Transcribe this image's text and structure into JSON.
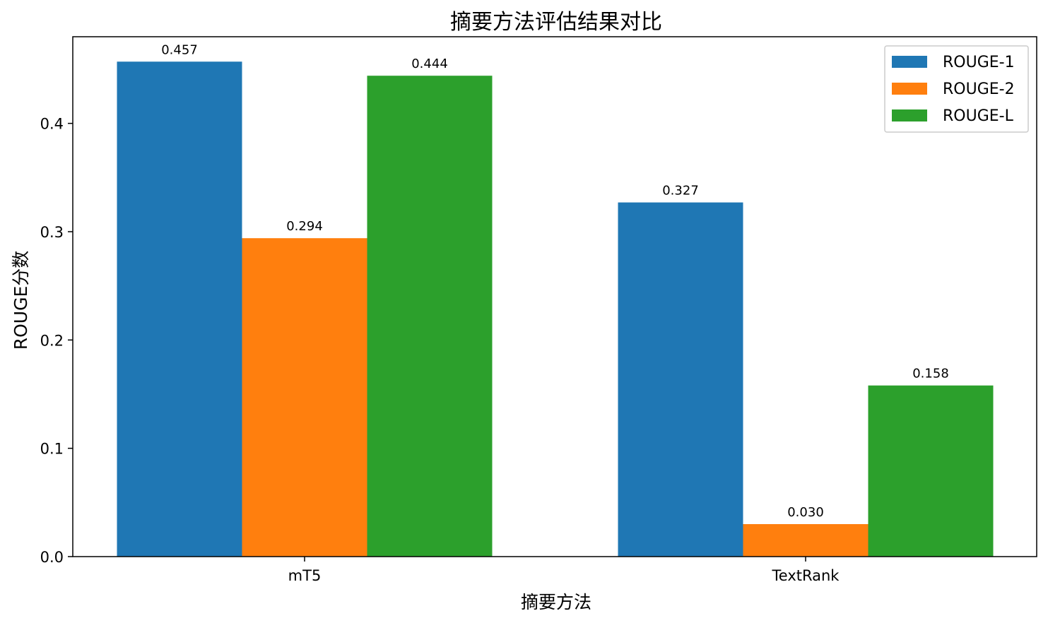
{
  "chart_data": {
    "type": "bar",
    "title": "摘要方法评估结果对比",
    "xlabel": "摘要方法",
    "ylabel": "ROUGE分数",
    "categories": [
      "mT5",
      "TextRank"
    ],
    "series": [
      {
        "name": "ROUGE-1",
        "color": "#1f77b4",
        "values": [
          0.457,
          0.327
        ],
        "labels": [
          "0.457",
          "0.327"
        ]
      },
      {
        "name": "ROUGE-2",
        "color": "#ff7f0e",
        "values": [
          0.294,
          0.03
        ],
        "labels": [
          "0.294",
          "0.030"
        ]
      },
      {
        "name": "ROUGE-L",
        "color": "#2ca02c",
        "values": [
          0.444,
          0.158
        ],
        "labels": [
          "0.444",
          "0.158"
        ]
      }
    ],
    "ylim": [
      0,
      0.48
    ],
    "yticks": [
      0.0,
      0.1,
      0.2,
      0.3,
      0.4
    ],
    "ytick_labels": [
      "0.0",
      "0.1",
      "0.2",
      "0.3",
      "0.4"
    ],
    "grid": false,
    "legend_position": "top-right"
  }
}
